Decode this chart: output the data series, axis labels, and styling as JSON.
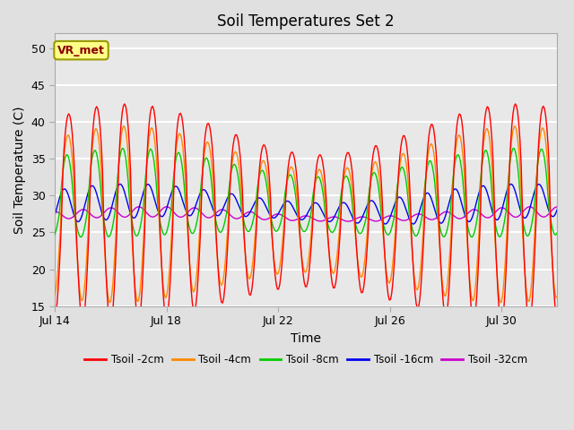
{
  "title": "Soil Temperatures Set 2",
  "xlabel": "Time",
  "ylabel": "Soil Temperature (C)",
  "ylim": [
    15,
    52
  ],
  "yticks": [
    15,
    20,
    25,
    30,
    35,
    40,
    45,
    50
  ],
  "xlim": [
    14,
    32
  ],
  "x_tick_days": [
    14,
    18,
    22,
    26,
    30
  ],
  "x_tick_labels": [
    "Jul 14",
    "Jul 18",
    "Jul 22",
    "Jul 26",
    "Jul 30"
  ],
  "colors": {
    "Tsoil -2cm": "#ff0000",
    "Tsoil -4cm": "#ff8800",
    "Tsoil -8cm": "#00cc00",
    "Tsoil -16cm": "#0000ee",
    "Tsoil -32cm": "#cc00cc"
  },
  "legend_colors": [
    "#ff0000",
    "#ff8800",
    "#00cc00",
    "#0000ee",
    "#cc00cc"
  ],
  "legend_labels": [
    "Tsoil -2cm",
    "Tsoil -4cm",
    "Tsoil -8cm",
    "Tsoil -16cm",
    "Tsoil -32cm"
  ],
  "annotation_text": "VR_met",
  "fig_bg_color": "#e0e0e0",
  "plot_bg_color": "#e8e8e8",
  "linewidth": 1.0,
  "figsize": [
    6.4,
    4.8
  ],
  "dpi": 100
}
